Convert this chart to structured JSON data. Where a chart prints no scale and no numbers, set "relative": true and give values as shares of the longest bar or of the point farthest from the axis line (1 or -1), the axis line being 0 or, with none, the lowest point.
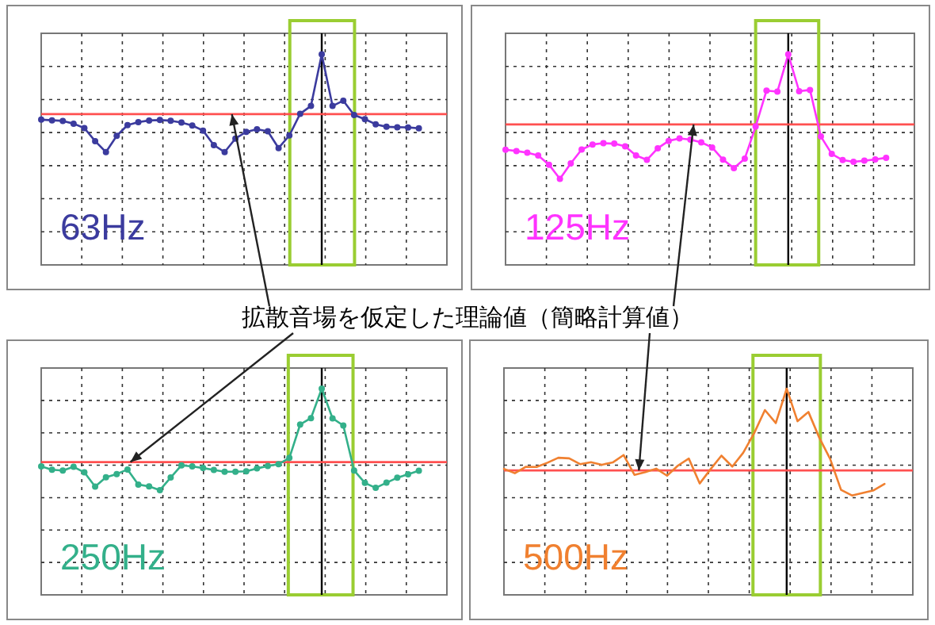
{
  "chart_data": [
    {
      "type": "line",
      "relative": true,
      "categories": [
        null,
        null,
        null,
        null,
        null,
        null,
        null,
        null,
        null,
        null,
        null,
        null,
        null,
        null,
        null,
        null,
        null,
        null,
        null,
        null,
        null,
        null,
        null,
        null,
        null,
        null,
        null,
        null,
        null,
        null,
        null,
        null,
        null,
        null,
        null,
        null
      ],
      "series": [
        {
          "color": "#3b3b9e",
          "values": [
            0.69,
            0.687,
            0.684,
            0.671,
            0.65,
            0.588,
            0.536,
            0.613,
            0.664,
            0.678,
            0.686,
            0.688,
            0.685,
            0.676,
            0.662,
            0.638,
            0.569,
            0.536,
            0.6,
            0.632,
            0.644,
            0.635,
            0.555,
            0.615,
            0.718,
            0.755,
            1,
            0.755,
            0.78,
            0.712,
            0.692,
            0.668,
            0.656,
            0.654,
            0.653,
            0.649
          ]
        }
      ],
      "grid": true,
      "marker": "circle",
      "line_style": "solid",
      "ref_lines": [
        {
          "axis": "y",
          "value": 0.716,
          "color": "#ff5050"
        }
      ],
      "annotations": [
        "63Hz",
        "拡散音場を仮定した理論値（簡略計算値）"
      ]
    },
    {
      "type": "line",
      "relative": true,
      "categories": [
        null,
        null,
        null,
        null,
        null,
        null,
        null,
        null,
        null,
        null,
        null,
        null,
        null,
        null,
        null,
        null,
        null,
        null,
        null,
        null,
        null,
        null,
        null,
        null,
        null,
        null,
        null,
        null,
        null,
        null,
        null,
        null,
        null,
        null,
        null,
        null
      ],
      "series": [
        {
          "color": "#ff33ff",
          "values": [
            0.547,
            0.541,
            0.533,
            0.52,
            0.476,
            0.409,
            0.482,
            0.548,
            0.572,
            0.578,
            0.576,
            0.563,
            0.52,
            0.499,
            0.554,
            0.589,
            0.601,
            0.595,
            0.582,
            0.558,
            0.5,
            0.46,
            0.505,
            0.657,
            0.828,
            0.823,
            1,
            0.825,
            0.831,
            0.61,
            0.527,
            0.498,
            0.49,
            0.495,
            0.501,
            0.509
          ]
        }
      ],
      "grid": true,
      "marker": "circle",
      "line_style": "solid",
      "ref_lines": [
        {
          "axis": "y",
          "value": 0.667,
          "color": "#ff5050"
        }
      ],
      "annotations": [
        "125Hz"
      ]
    },
    {
      "type": "line",
      "relative": true,
      "categories": [
        null,
        null,
        null,
        null,
        null,
        null,
        null,
        null,
        null,
        null,
        null,
        null,
        null,
        null,
        null,
        null,
        null,
        null,
        null,
        null,
        null,
        null,
        null,
        null,
        null,
        null,
        null,
        null,
        null,
        null,
        null,
        null,
        null,
        null,
        null,
        null
      ],
      "series": [
        {
          "color": "#33b08a",
          "values": [
            0.623,
            0.607,
            0.603,
            0.621,
            0.594,
            0.525,
            0.57,
            0.586,
            0.608,
            0.535,
            0.526,
            0.508,
            0.569,
            0.628,
            0.623,
            0.615,
            0.606,
            0.597,
            0.597,
            0.599,
            0.613,
            0.625,
            0.634,
            0.664,
            0.826,
            0.857,
            1,
            0.856,
            0.821,
            0.603,
            0.543,
            0.519,
            0.544,
            0.568,
            0.585,
            0.602
          ]
        }
      ],
      "grid": true,
      "marker": "circle",
      "line_style": "solid",
      "ref_lines": [
        {
          "axis": "y",
          "value": 0.644,
          "color": "#ff5050"
        }
      ],
      "annotations": [
        "250Hz"
      ]
    },
    {
      "type": "line",
      "relative": true,
      "categories": [
        null,
        null,
        null,
        null,
        null,
        null,
        null,
        null,
        null,
        null,
        null,
        null,
        null,
        null,
        null,
        null,
        null,
        null,
        null,
        null,
        null,
        null,
        null,
        null,
        null,
        null,
        null,
        null,
        null,
        null,
        null,
        null,
        null,
        null,
        null,
        null
      ],
      "series": [
        {
          "color": "#f08030",
          "values": [
            0.611,
            0.59,
            0.621,
            0.62,
            0.641,
            0.665,
            0.662,
            0.634,
            0.643,
            0.631,
            0.642,
            0.678,
            0.582,
            0.595,
            0.612,
            0.578,
            0.627,
            0.661,
            0.54,
            0.609,
            0.675,
            0.622,
            0.689,
            0.783,
            0.896,
            0.833,
            1,
            0.842,
            0.887,
            0.762,
            0.659,
            0.509,
            0.482,
            0.494,
            0.507,
            0.538
          ]
        }
      ],
      "grid": true,
      "line_style": "solid",
      "ref_lines": [
        {
          "axis": "y",
          "value": 0.603,
          "color": "#ff5050"
        }
      ],
      "annotations": [
        "500Hz"
      ]
    }
  ]
}
